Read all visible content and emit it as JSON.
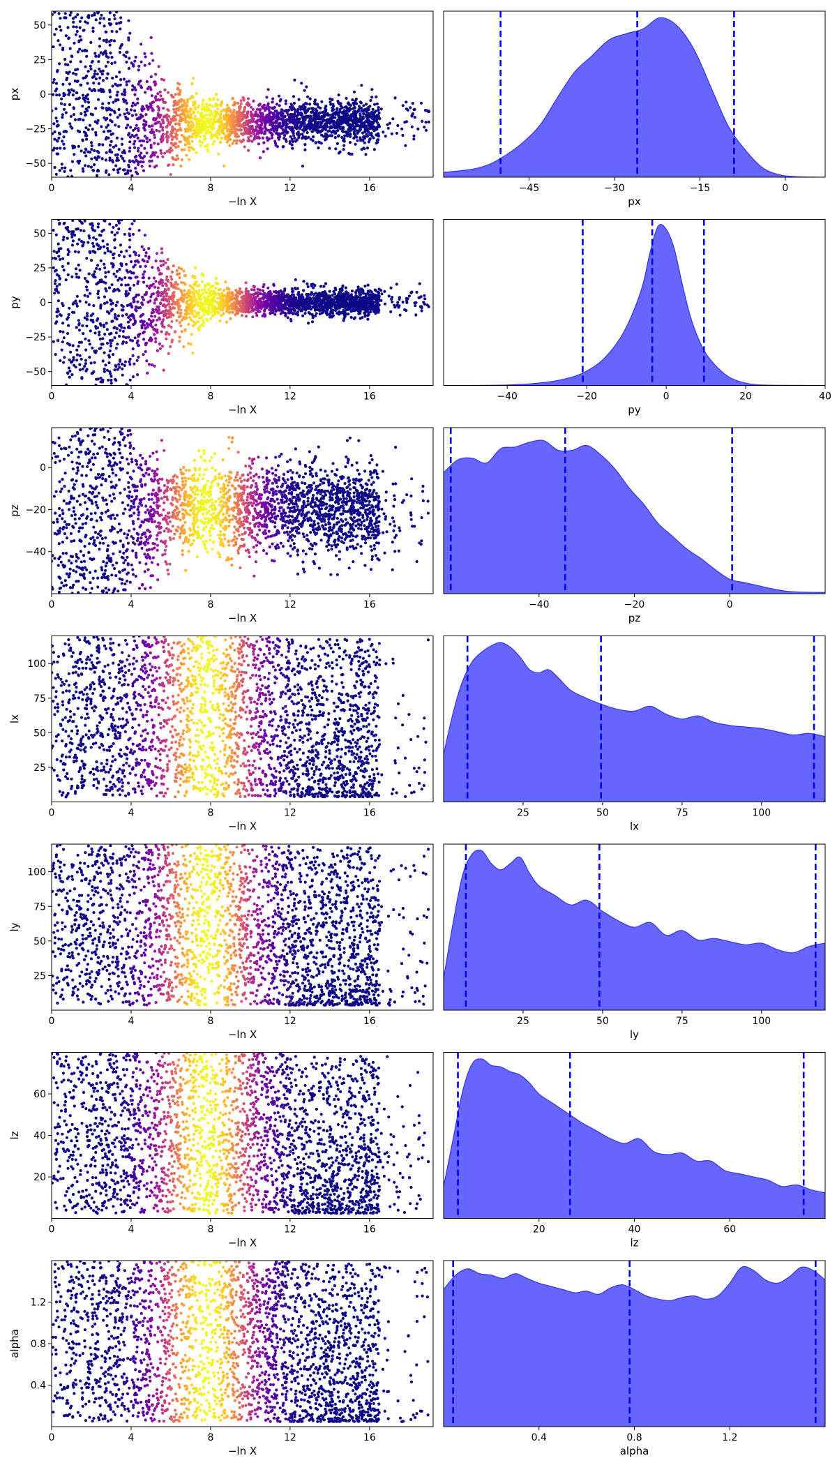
{
  "chart_data": {
    "type": "scatter",
    "layout": "7 rows x 2 columns: left = scatter trace of samples vs -ln X colored by weight (plasma colormap), right = filled marginal density with dashed quantile lines",
    "colors": {
      "density_fill": "#6666ff",
      "density_line": "#3333ee",
      "quantile_line": "#0000ee",
      "colormap": "plasma"
    },
    "trace_xaxis": {
      "label": "−ln X",
      "range": [
        0,
        19.2
      ],
      "ticks": [
        "0",
        "4",
        "8",
        "12",
        "16"
      ],
      "tick_values": [
        0,
        4,
        8,
        12,
        16
      ]
    },
    "rows": [
      {
        "param": "px",
        "trace": {
          "ylabel": "px",
          "ylim": [
            -60,
            60
          ],
          "yticks": [
            "50",
            "25",
            "0",
            "−25",
            "−50"
          ],
          "ytick_values": [
            50,
            25,
            0,
            -25,
            -50
          ],
          "converge_center": -20,
          "converge_spread": 8,
          "bright_center": 7.8
        },
        "density": {
          "xlabel": "px",
          "xlim": [
            -60,
            7
          ],
          "xticks": [
            "−45",
            "−30",
            "−15",
            "0"
          ],
          "xtick_values": [
            -45,
            -30,
            -15,
            0
          ],
          "quantiles": [
            -50,
            -26,
            -9
          ],
          "curve_x": [
            -60,
            -55,
            -52,
            -49,
            -46,
            -43,
            -40,
            -37,
            -34,
            -31,
            -28,
            -25,
            -22,
            -19,
            -16,
            -13,
            -10,
            -7,
            -4,
            -1,
            2,
            7
          ],
          "curve_y": [
            0.03,
            0.05,
            0.08,
            0.14,
            0.22,
            0.33,
            0.5,
            0.66,
            0.76,
            0.86,
            0.9,
            0.93,
            1.0,
            0.95,
            0.8,
            0.56,
            0.32,
            0.17,
            0.06,
            0.015,
            0.003,
            0
          ]
        }
      },
      {
        "param": "py",
        "trace": {
          "ylabel": "py",
          "ylim": [
            -60,
            60
          ],
          "yticks": [
            "50",
            "25",
            "0",
            "−25",
            "−50"
          ],
          "ytick_values": [
            50,
            25,
            0,
            -25,
            -50
          ],
          "converge_center": 0,
          "converge_spread": 3,
          "bright_center": 7.8
        },
        "density": {
          "xlabel": "py",
          "xlim": [
            -56,
            40
          ],
          "xticks": [
            "−40",
            "−20",
            "0",
            "20",
            "40"
          ],
          "xtick_values": [
            -40,
            -20,
            0,
            20,
            40
          ],
          "quantiles": [
            -21,
            -3.5,
            9.5
          ],
          "curve_x": [
            -56,
            -40,
            -30,
            -24,
            -20,
            -16,
            -12,
            -9,
            -6,
            -4,
            -2,
            0,
            2,
            4,
            6,
            8,
            10,
            13,
            16,
            20,
            25,
            40
          ],
          "curve_y": [
            0,
            0.003,
            0.02,
            0.05,
            0.09,
            0.16,
            0.28,
            0.42,
            0.62,
            0.84,
            1.0,
            0.98,
            0.86,
            0.64,
            0.44,
            0.3,
            0.2,
            0.11,
            0.05,
            0.015,
            0.002,
            0
          ]
        }
      },
      {
        "param": "pz",
        "trace": {
          "ylabel": "pz",
          "ylim": [
            -60,
            19
          ],
          "yticks": [
            "0",
            "−20",
            "−40"
          ],
          "ytick_values": [
            0,
            -20,
            -40
          ],
          "converge_center": -20,
          "converge_spread": 11,
          "bright_center": 7.8
        },
        "density": {
          "xlabel": "pz",
          "xlim": [
            -60,
            20
          ],
          "xticks": [
            "−40",
            "−20",
            "0"
          ],
          "xtick_values": [
            -40,
            -20,
            0
          ],
          "quantiles": [
            -58.5,
            -34.5,
            0.5
          ],
          "curve_x": [
            -60,
            -57,
            -54,
            -51,
            -48,
            -45,
            -42,
            -39,
            -36,
            -33,
            -30,
            -27,
            -24,
            -21,
            -18,
            -15,
            -12,
            -9,
            -6,
            -3,
            0,
            3,
            6,
            9,
            12,
            15,
            20
          ],
          "curve_y": [
            0.76,
            0.84,
            0.85,
            0.82,
            0.91,
            0.92,
            0.95,
            0.96,
            0.9,
            0.9,
            0.93,
            0.87,
            0.78,
            0.66,
            0.56,
            0.44,
            0.36,
            0.28,
            0.22,
            0.15,
            0.09,
            0.07,
            0.05,
            0.03,
            0.015,
            0.01,
            0.008
          ]
        }
      },
      {
        "param": "lx",
        "trace": {
          "ylabel": "lx",
          "ylim": [
            0,
            120
          ],
          "yticks": [
            "100",
            "75",
            "50",
            "25"
          ],
          "ytick_values": [
            100,
            75,
            50,
            25
          ],
          "converge_center": null,
          "converge_spread": null,
          "bright_center": 7.8
        },
        "density": {
          "xlabel": "lx",
          "xlim": [
            0,
            120
          ],
          "xticks": [
            "25",
            "50",
            "75",
            "100"
          ],
          "xtick_values": [
            25,
            50,
            75,
            100
          ],
          "quantiles": [
            7.5,
            49.5,
            116.5
          ],
          "curve_x": [
            0,
            3,
            6,
            9,
            12,
            15,
            18,
            21,
            24,
            27,
            30,
            33,
            36,
            40,
            45,
            50,
            55,
            60,
            65,
            70,
            75,
            80,
            85,
            90,
            95,
            100,
            105,
            110,
            115,
            120
          ],
          "curve_y": [
            0.3,
            0.56,
            0.76,
            0.88,
            0.94,
            0.98,
            1.0,
            0.97,
            0.91,
            0.83,
            0.81,
            0.83,
            0.78,
            0.7,
            0.65,
            0.61,
            0.58,
            0.57,
            0.6,
            0.55,
            0.52,
            0.54,
            0.5,
            0.48,
            0.47,
            0.46,
            0.44,
            0.42,
            0.43,
            0.41
          ]
        }
      },
      {
        "param": "ly",
        "trace": {
          "ylabel": "ly",
          "ylim": [
            0,
            120
          ],
          "yticks": [
            "100",
            "75",
            "50",
            "25"
          ],
          "ytick_values": [
            100,
            75,
            50,
            25
          ],
          "converge_center": null,
          "converge_spread": null,
          "bright_center": 7.8
        },
        "density": {
          "xlabel": "ly",
          "xlim": [
            0,
            120
          ],
          "xticks": [
            "25",
            "50",
            "75",
            "100"
          ],
          "xtick_values": [
            25,
            50,
            75,
            100
          ],
          "quantiles": [
            7,
            49,
            117
          ],
          "curve_x": [
            0,
            3,
            6,
            9,
            12,
            15,
            18,
            21,
            24,
            27,
            30,
            35,
            40,
            45,
            50,
            55,
            60,
            65,
            70,
            75,
            80,
            85,
            90,
            95,
            100,
            105,
            110,
            115,
            120
          ],
          "curve_y": [
            0.2,
            0.55,
            0.85,
            0.98,
            1.0,
            0.92,
            0.88,
            0.92,
            0.96,
            0.86,
            0.78,
            0.72,
            0.66,
            0.69,
            0.62,
            0.56,
            0.52,
            0.55,
            0.47,
            0.5,
            0.44,
            0.45,
            0.43,
            0.41,
            0.42,
            0.38,
            0.36,
            0.4,
            0.42
          ]
        }
      },
      {
        "param": "lz",
        "trace": {
          "ylabel": "lz",
          "ylim": [
            0,
            80
          ],
          "yticks": [
            "60",
            "40",
            "20"
          ],
          "ytick_values": [
            60,
            40,
            20
          ],
          "converge_center": null,
          "converge_spread": null,
          "bright_center": 7.8
        },
        "density": {
          "xlabel": "lz",
          "xlim": [
            0,
            80
          ],
          "xticks": [
            "20",
            "40",
            "60"
          ],
          "xtick_values": [
            20,
            40,
            60
          ],
          "quantiles": [
            3,
            26.5,
            75.5
          ],
          "curve_x": [
            0,
            2,
            4,
            6,
            8,
            10,
            12,
            14,
            16,
            18,
            20,
            23,
            26,
            29,
            32,
            35,
            38,
            41,
            44,
            47,
            50,
            53,
            56,
            59,
            62,
            65,
            68,
            71,
            74,
            77,
            80
          ],
          "curve_y": [
            0.2,
            0.5,
            0.8,
            0.97,
            1.0,
            0.96,
            0.95,
            0.92,
            0.9,
            0.85,
            0.78,
            0.72,
            0.66,
            0.6,
            0.55,
            0.5,
            0.47,
            0.5,
            0.42,
            0.4,
            0.41,
            0.36,
            0.36,
            0.3,
            0.28,
            0.26,
            0.24,
            0.2,
            0.21,
            0.18,
            0.16
          ]
        }
      },
      {
        "param": "alpha",
        "trace": {
          "ylabel": "alpha",
          "ylim": [
            0,
            1.6
          ],
          "yticks": [
            "1.2",
            "0.8",
            "0.4"
          ],
          "ytick_values": [
            1.2,
            0.8,
            0.4
          ],
          "converge_center": null,
          "converge_spread": null,
          "bright_center": 7.8
        },
        "density": {
          "xlabel": "alpha",
          "xlim": [
            0,
            1.6
          ],
          "xticks": [
            "0.4",
            "0.8",
            "1.2"
          ],
          "xtick_values": [
            0.4,
            0.8,
            1.2
          ],
          "quantiles": [
            0.04,
            0.78,
            1.56
          ],
          "curve_x": [
            0,
            0.05,
            0.1,
            0.15,
            0.2,
            0.25,
            0.3,
            0.35,
            0.4,
            0.45,
            0.5,
            0.55,
            0.6,
            0.65,
            0.7,
            0.75,
            0.8,
            0.85,
            0.9,
            0.95,
            1.0,
            1.05,
            1.1,
            1.15,
            1.2,
            1.25,
            1.3,
            1.35,
            1.4,
            1.45,
            1.5,
            1.55,
            1.6
          ],
          "curve_y": [
            0.86,
            0.95,
            0.99,
            0.96,
            0.95,
            0.93,
            0.96,
            0.93,
            0.9,
            0.88,
            0.86,
            0.84,
            0.85,
            0.83,
            0.87,
            0.89,
            0.86,
            0.82,
            0.8,
            0.79,
            0.81,
            0.82,
            0.8,
            0.82,
            0.9,
            1.0,
            0.98,
            0.92,
            0.9,
            0.94,
            1.0,
            0.98,
            0.92
          ]
        }
      }
    ]
  }
}
